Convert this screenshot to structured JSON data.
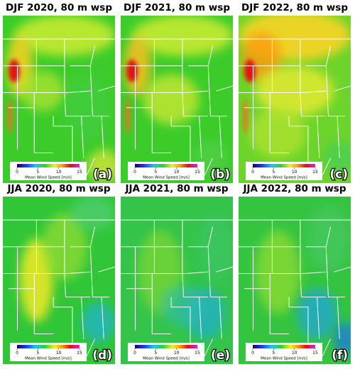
{
  "panels": [
    {
      "title": "DJF 2020, 80 m wsp",
      "label": "(a)"
    },
    {
      "title": "DJF 2021, 80 m wsp",
      "label": "(b)"
    },
    {
      "title": "DJF 2022, 80 m wsp",
      "label": "(c)"
    },
    {
      "title": "JJA 2020, 80 m wsp",
      "label": "(d)"
    },
    {
      "title": "JJA 2021, 80 m wsp",
      "label": "(e)"
    },
    {
      "title": "JJA 2022, 80 m wsp",
      "label": "(f)"
    }
  ],
  "colorbar": {
    "label": "Mean Wind Speed [m/s]",
    "lim": [
      0,
      15
    ],
    "ticks": [
      0,
      5,
      10,
      15
    ]
  }
}
